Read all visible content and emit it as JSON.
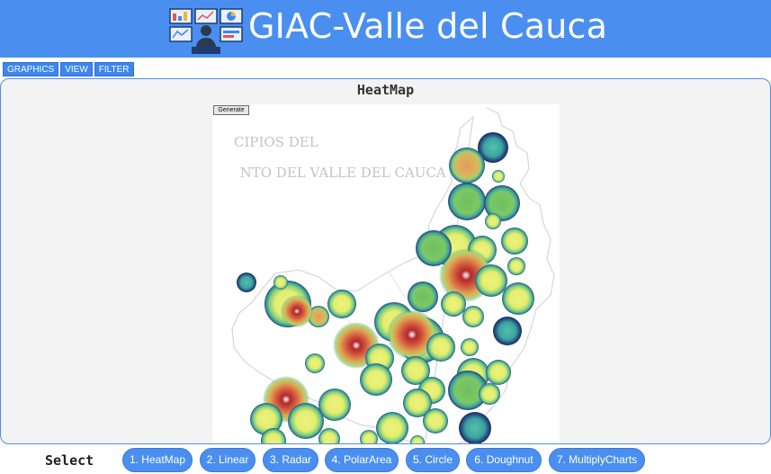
{
  "header": {
    "title": "GIAC-Valle del Cauca",
    "logo_icon": "dashboard-user-icon"
  },
  "menu": {
    "items": [
      "GRAPHICS",
      "VIEW",
      "FILTER"
    ]
  },
  "panel": {
    "title": "HeatMap",
    "generate_label": "Generate",
    "map_title_line1": "CIPIOS DEL",
    "map_title_line2": "NTO DEL VALLE DEL CAUCA"
  },
  "bottom": {
    "select_label": "Select",
    "buttons": [
      "1. HeatMap",
      "2. Linear",
      "3. Radar",
      "4. PolarArea",
      "5. Circle",
      "6. Doughnut",
      "7. MultiplyCharts"
    ]
  },
  "colors": {
    "brand": "#4a8ff0",
    "panel_bg": "#f3f3f3"
  }
}
